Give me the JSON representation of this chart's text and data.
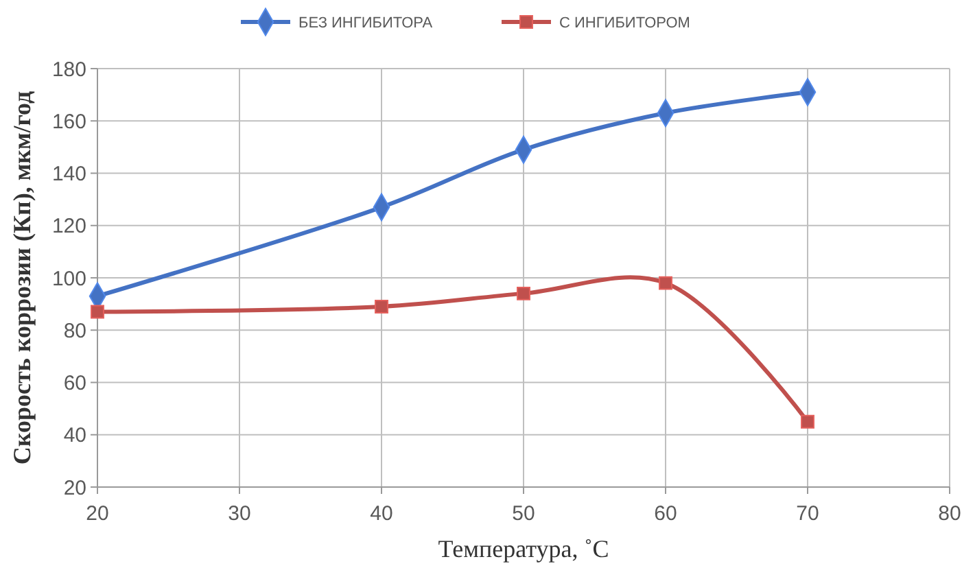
{
  "chart_data": {
    "type": "line",
    "xlabel": "Температура, ˚C",
    "ylabel": "Скорость коррозии (Кп), мкм/год",
    "x": [
      20,
      40,
      50,
      60,
      70
    ],
    "series": [
      {
        "name": "БЕЗ ИНГИБИТОРА",
        "color": "#4472c4",
        "marker": "diamond",
        "values": [
          93,
          127,
          149,
          163,
          171
        ]
      },
      {
        "name": "С ИНГИБИТОРОМ",
        "color": "#c0504d",
        "marker": "square",
        "values": [
          87,
          89,
          94,
          98,
          45
        ]
      }
    ],
    "xlim": [
      20,
      80
    ],
    "xticks": [
      20,
      30,
      40,
      50,
      60,
      70,
      80
    ],
    "ylim": [
      20,
      180
    ],
    "yticks": [
      20,
      40,
      60,
      80,
      100,
      120,
      140,
      160,
      180
    ],
    "grid": true,
    "legend": "top",
    "line_style": "solid"
  }
}
